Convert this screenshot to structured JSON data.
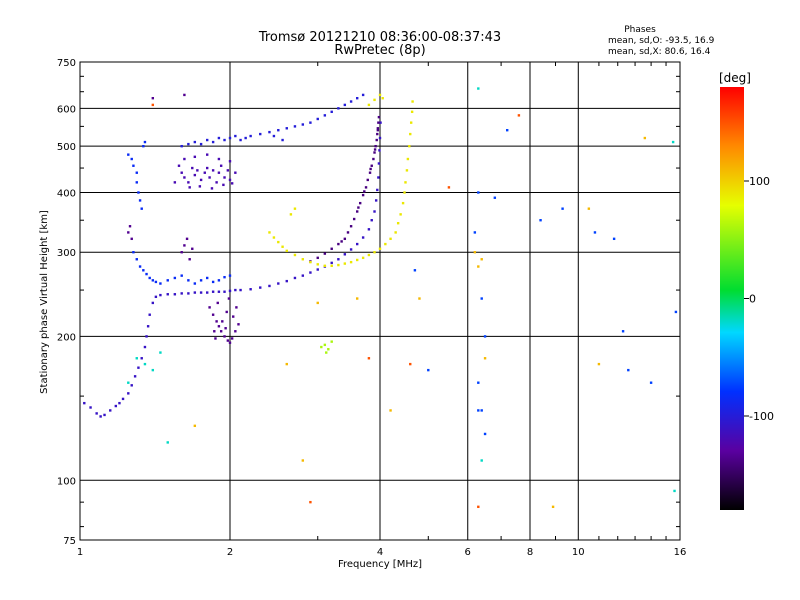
{
  "chart_data": {
    "type": "scatter",
    "title": "Tromsø 20121210 08:36:00-08:37:43",
    "subtitle": "RwPretec (8p)",
    "stats": {
      "heading": "Phases",
      "line1": "mean, sd,O: -93.5, 16.9",
      "line2": "mean, sd,X:  80.6, 16.4"
    },
    "xlabel": "Frequency [MHz]",
    "ylabel": "Stationary phase Virtual Height [km]",
    "x_scale": "log",
    "y_scale": "log",
    "xlim": [
      1,
      16
    ],
    "ylim": [
      75,
      750
    ],
    "x_ticks": [
      1,
      2,
      4,
      6,
      8,
      10,
      16
    ],
    "x_tick_labels": [
      "1",
      "2",
      "4",
      "6",
      "8",
      "10",
      "16"
    ],
    "y_ticks": [
      75,
      100,
      200,
      300,
      400,
      500,
      600,
      750
    ],
    "y_tick_labels": [
      "75",
      "100",
      "200",
      "300",
      "400",
      "500",
      "600",
      "750"
    ],
    "grid": true,
    "colorbar": {
      "label": "[deg]",
      "range": [
        -180,
        180
      ],
      "ticks": [
        100,
        0,
        -100
      ],
      "tick_labels": [
        "100",
        "0",
        "-100"
      ]
    },
    "series": [
      {
        "phase": -110,
        "points": [
          [
            1.02,
            145
          ],
          [
            1.05,
            142
          ],
          [
            1.08,
            138
          ],
          [
            1.1,
            136
          ],
          [
            1.12,
            137
          ],
          [
            1.15,
            140
          ],
          [
            1.18,
            143
          ],
          [
            1.2,
            145
          ],
          [
            1.22,
            148
          ],
          [
            1.25,
            152
          ],
          [
            1.27,
            158
          ],
          [
            1.29,
            165
          ],
          [
            1.31,
            172
          ],
          [
            1.33,
            180
          ],
          [
            1.35,
            190
          ],
          [
            1.36,
            200
          ],
          [
            1.37,
            210
          ],
          [
            1.38,
            222
          ],
          [
            1.4,
            235
          ],
          [
            1.42,
            242
          ],
          [
            1.45,
            244
          ],
          [
            1.5,
            245
          ],
          [
            1.55,
            245
          ],
          [
            1.6,
            246
          ],
          [
            1.65,
            246
          ],
          [
            1.7,
            247
          ],
          [
            1.75,
            247
          ],
          [
            1.8,
            247
          ],
          [
            1.85,
            248
          ],
          [
            1.9,
            248
          ],
          [
            1.95,
            248
          ],
          [
            2.0,
            249
          ],
          [
            2.05,
            250
          ],
          [
            2.1,
            250
          ],
          [
            2.2,
            251
          ],
          [
            2.3,
            253
          ],
          [
            2.4,
            255
          ],
          [
            2.5,
            258
          ],
          [
            2.6,
            261
          ],
          [
            2.7,
            265
          ],
          [
            2.8,
            268
          ],
          [
            2.9,
            272
          ],
          [
            3.0,
            276
          ],
          [
            3.1,
            280
          ],
          [
            3.2,
            285
          ],
          [
            3.3,
            290
          ],
          [
            3.4,
            297
          ],
          [
            3.5,
            304
          ],
          [
            3.6,
            312
          ],
          [
            3.7,
            322
          ],
          [
            3.8,
            335
          ],
          [
            3.85,
            350
          ],
          [
            3.9,
            365
          ],
          [
            3.93,
            385
          ],
          [
            3.95,
            405
          ],
          [
            3.97,
            430
          ],
          [
            3.98,
            460
          ],
          [
            3.99,
            490
          ],
          [
            4.0,
            520
          ],
          [
            4.01,
            560
          ]
        ]
      },
      {
        "phase": -120,
        "points": [
          [
            1.6,
            440
          ],
          [
            1.62,
            430
          ],
          [
            1.65,
            420
          ],
          [
            1.68,
            450
          ],
          [
            1.7,
            435
          ],
          [
            1.72,
            445
          ],
          [
            1.75,
            425
          ],
          [
            1.78,
            440
          ],
          [
            1.8,
            450
          ],
          [
            1.82,
            430
          ],
          [
            1.85,
            445
          ],
          [
            1.88,
            420
          ],
          [
            1.9,
            440
          ],
          [
            1.92,
            455
          ],
          [
            1.95,
            430
          ],
          [
            1.98,
            445
          ],
          [
            2.0,
            425
          ],
          [
            1.62,
            470
          ],
          [
            1.7,
            475
          ],
          [
            1.8,
            480
          ],
          [
            1.9,
            470
          ],
          [
            2.0,
            465
          ],
          [
            2.05,
            440
          ],
          [
            1.55,
            420
          ],
          [
            1.58,
            455
          ],
          [
            1.66,
            410
          ],
          [
            1.74,
            412
          ],
          [
            1.84,
            408
          ],
          [
            1.94,
            415
          ],
          [
            2.02,
            418
          ]
        ]
      },
      {
        "phase": -100,
        "points": [
          [
            1.6,
            500
          ],
          [
            1.65,
            505
          ],
          [
            1.7,
            510
          ],
          [
            1.75,
            505
          ],
          [
            1.8,
            515
          ],
          [
            1.85,
            510
          ],
          [
            1.9,
            520
          ],
          [
            1.95,
            515
          ],
          [
            2.0,
            520
          ],
          [
            2.05,
            525
          ],
          [
            2.1,
            515
          ],
          [
            2.15,
            520
          ],
          [
            2.2,
            525
          ],
          [
            2.3,
            530
          ],
          [
            2.4,
            535
          ],
          [
            2.5,
            540
          ],
          [
            2.6,
            545
          ],
          [
            2.7,
            550
          ],
          [
            2.8,
            555
          ],
          [
            2.9,
            560
          ],
          [
            3.0,
            570
          ],
          [
            3.1,
            580
          ],
          [
            3.2,
            590
          ],
          [
            3.3,
            600
          ],
          [
            3.4,
            610
          ],
          [
            3.5,
            620
          ],
          [
            3.6,
            630
          ],
          [
            3.7,
            640
          ],
          [
            2.45,
            525
          ],
          [
            2.55,
            515
          ]
        ]
      },
      {
        "phase": -85,
        "points": [
          [
            1.25,
            480
          ],
          [
            1.27,
            470
          ],
          [
            1.28,
            455
          ],
          [
            1.3,
            440
          ],
          [
            1.3,
            420
          ],
          [
            1.31,
            400
          ],
          [
            1.32,
            385
          ],
          [
            1.33,
            370
          ],
          [
            1.34,
            500
          ],
          [
            1.35,
            510
          ],
          [
            1.28,
            300
          ],
          [
            1.3,
            290
          ],
          [
            1.32,
            280
          ],
          [
            1.34,
            275
          ],
          [
            1.36,
            270
          ],
          [
            1.38,
            265
          ],
          [
            1.4,
            262
          ],
          [
            1.42,
            260
          ],
          [
            1.45,
            258
          ],
          [
            1.5,
            262
          ],
          [
            1.55,
            265
          ],
          [
            1.6,
            268
          ],
          [
            1.65,
            262
          ],
          [
            1.7,
            258
          ],
          [
            1.75,
            262
          ],
          [
            1.8,
            265
          ],
          [
            1.85,
            260
          ],
          [
            1.9,
            262
          ],
          [
            1.95,
            266
          ],
          [
            2.0,
            268
          ]
        ]
      },
      {
        "phase": -135,
        "points": [
          [
            1.82,
            230
          ],
          [
            1.85,
            222
          ],
          [
            1.88,
            215
          ],
          [
            1.9,
            210
          ],
          [
            1.92,
            205
          ],
          [
            1.95,
            200
          ],
          [
            1.98,
            196
          ],
          [
            2.0,
            194
          ],
          [
            2.02,
            198
          ],
          [
            2.05,
            205
          ],
          [
            2.08,
            212
          ],
          [
            1.87,
            198
          ],
          [
            1.93,
            215
          ],
          [
            1.97,
            225
          ],
          [
            2.03,
            220
          ],
          [
            1.89,
            235
          ],
          [
            1.99,
            240
          ],
          [
            2.06,
            230
          ],
          [
            1.86,
            205
          ],
          [
            1.96,
            208
          ],
          [
            1.6,
            300
          ],
          [
            1.62,
            310
          ],
          [
            1.64,
            320
          ],
          [
            1.66,
            290
          ],
          [
            1.68,
            305
          ],
          [
            1.25,
            330
          ],
          [
            1.26,
            340
          ],
          [
            1.27,
            320
          ],
          [
            1.4,
            630
          ],
          [
            1.62,
            640
          ]
        ]
      },
      {
        "phase": -140,
        "points": [
          [
            3.4,
            320
          ],
          [
            3.45,
            330
          ],
          [
            3.5,
            340
          ],
          [
            3.55,
            352
          ],
          [
            3.6,
            365
          ],
          [
            3.65,
            380
          ],
          [
            3.7,
            395
          ],
          [
            3.75,
            410
          ],
          [
            3.78,
            425
          ],
          [
            3.82,
            440
          ],
          [
            3.85,
            455
          ],
          [
            3.88,
            470
          ],
          [
            3.9,
            485
          ],
          [
            3.92,
            500
          ],
          [
            3.94,
            515
          ],
          [
            3.95,
            530
          ],
          [
            3.96,
            545
          ],
          [
            3.97,
            560
          ],
          [
            3.2,
            305
          ],
          [
            3.3,
            312
          ],
          [
            3.1,
            298
          ],
          [
            3.0,
            292
          ],
          [
            2.9,
            287
          ],
          [
            3.35,
            316
          ],
          [
            3.62,
            372
          ],
          [
            3.72,
            402
          ],
          [
            3.83,
            448
          ],
          [
            3.91,
            492
          ],
          [
            3.96,
            540
          ],
          [
            3.98,
            575
          ]
        ]
      },
      {
        "phase": 90,
        "points": [
          [
            2.4,
            330
          ],
          [
            2.45,
            322
          ],
          [
            2.5,
            315
          ],
          [
            2.55,
            308
          ],
          [
            2.6,
            302
          ],
          [
            2.7,
            296
          ],
          [
            2.8,
            290
          ],
          [
            2.9,
            286
          ],
          [
            3.0,
            283
          ],
          [
            3.1,
            281
          ],
          [
            3.2,
            281
          ],
          [
            3.3,
            282
          ],
          [
            3.4,
            284
          ],
          [
            3.5,
            286
          ],
          [
            3.6,
            289
          ],
          [
            3.7,
            292
          ],
          [
            3.8,
            296
          ],
          [
            3.9,
            300
          ],
          [
            4.0,
            305
          ],
          [
            4.1,
            312
          ],
          [
            4.2,
            320
          ],
          [
            4.3,
            330
          ],
          [
            4.35,
            345
          ],
          [
            4.4,
            360
          ],
          [
            4.45,
            380
          ],
          [
            4.48,
            400
          ],
          [
            4.5,
            420
          ],
          [
            4.53,
            445
          ],
          [
            4.55,
            470
          ],
          [
            4.58,
            500
          ],
          [
            4.6,
            530
          ],
          [
            4.62,
            560
          ],
          [
            4.64,
            590
          ],
          [
            4.65,
            620
          ],
          [
            2.65,
            360
          ],
          [
            2.7,
            370
          ],
          [
            3.8,
            610
          ],
          [
            3.9,
            625
          ],
          [
            4.0,
            640
          ],
          [
            4.05,
            630
          ]
        ]
      },
      {
        "phase": 60,
        "points": [
          [
            3.1,
            192
          ],
          [
            3.15,
            188
          ],
          [
            3.2,
            195
          ],
          [
            3.05,
            190
          ],
          [
            3.12,
            185
          ]
        ]
      },
      {
        "phase": -20,
        "points": [
          [
            1.3,
            180
          ],
          [
            1.35,
            175
          ],
          [
            1.4,
            170
          ],
          [
            1.25,
            160
          ],
          [
            1.45,
            185
          ],
          [
            6.3,
            660
          ],
          [
            15.5,
            510
          ],
          [
            15.6,
            95
          ],
          [
            6.4,
            110
          ],
          [
            1.5,
            120
          ]
        ]
      },
      {
        "phase": 150,
        "points": [
          [
            1.4,
            610
          ],
          [
            3.8,
            180
          ],
          [
            6.3,
            88
          ],
          [
            7.6,
            580
          ],
          [
            5.5,
            410
          ],
          [
            4.6,
            175
          ],
          [
            2.9,
            90
          ]
        ]
      },
      {
        "phase": 110,
        "points": [
          [
            2.6,
            175
          ],
          [
            2.8,
            110
          ],
          [
            3.6,
            240
          ],
          [
            4.8,
            240
          ],
          [
            6.5,
            180
          ],
          [
            8.9,
            88
          ],
          [
            10.5,
            370
          ],
          [
            11.0,
            175
          ],
          [
            13.6,
            520
          ],
          [
            3.0,
            235
          ],
          [
            6.3,
            280
          ],
          [
            6.4,
            290
          ],
          [
            6.2,
            300
          ],
          [
            1.7,
            130
          ],
          [
            4.2,
            140
          ]
        ]
      },
      {
        "phase": -75,
        "points": [
          [
            6.3,
            400
          ],
          [
            6.2,
            330
          ],
          [
            6.4,
            240
          ],
          [
            6.3,
            160
          ],
          [
            6.5,
            200
          ],
          [
            8.4,
            350
          ],
          [
            9.3,
            370
          ],
          [
            10.8,
            330
          ],
          [
            11.8,
            320
          ],
          [
            12.3,
            205
          ],
          [
            12.6,
            170
          ],
          [
            14.0,
            160
          ],
          [
            15.7,
            225
          ],
          [
            4.7,
            275
          ],
          [
            5.0,
            170
          ],
          [
            6.4,
            140
          ],
          [
            6.5,
            125
          ],
          [
            6.8,
            390
          ],
          [
            7.2,
            540
          ],
          [
            6.3,
            140
          ]
        ]
      }
    ]
  }
}
